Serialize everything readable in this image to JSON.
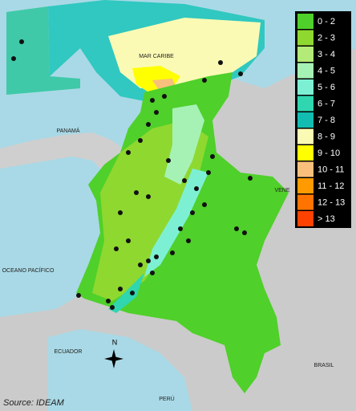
{
  "legend": {
    "items": [
      {
        "label": "0 - 2",
        "color": "#4fd02a"
      },
      {
        "label": "2 - 3",
        "color": "#8fd830"
      },
      {
        "label": "3 - 4",
        "color": "#b4ea78"
      },
      {
        "label": "4 - 5",
        "color": "#a6f2b4"
      },
      {
        "label": "5 - 6",
        "color": "#7df0d4"
      },
      {
        "label": "6 - 7",
        "color": "#2fd6b0"
      },
      {
        "label": "7 - 8",
        "color": "#12bcb0"
      },
      {
        "label": "8 - 9",
        "color": "#fafab4"
      },
      {
        "label": "9 - 10",
        "color": "#ffff00"
      },
      {
        "label": "10 - 11",
        "color": "#f8c07c"
      },
      {
        "label": "11 - 12",
        "color": "#ff9a00"
      },
      {
        "label": "12 - 13",
        "color": "#ff7400"
      },
      {
        "label": "> 13",
        "color": "#ff4200"
      }
    ]
  },
  "places": [
    "MAR CARIBE",
    "PANAMÁ",
    "VENE",
    "OCEANO PACÍFICO",
    "ECUADOR",
    "BRASIL",
    "PERÚ"
  ],
  "compass": "N",
  "source": "Source: IDEAM"
}
